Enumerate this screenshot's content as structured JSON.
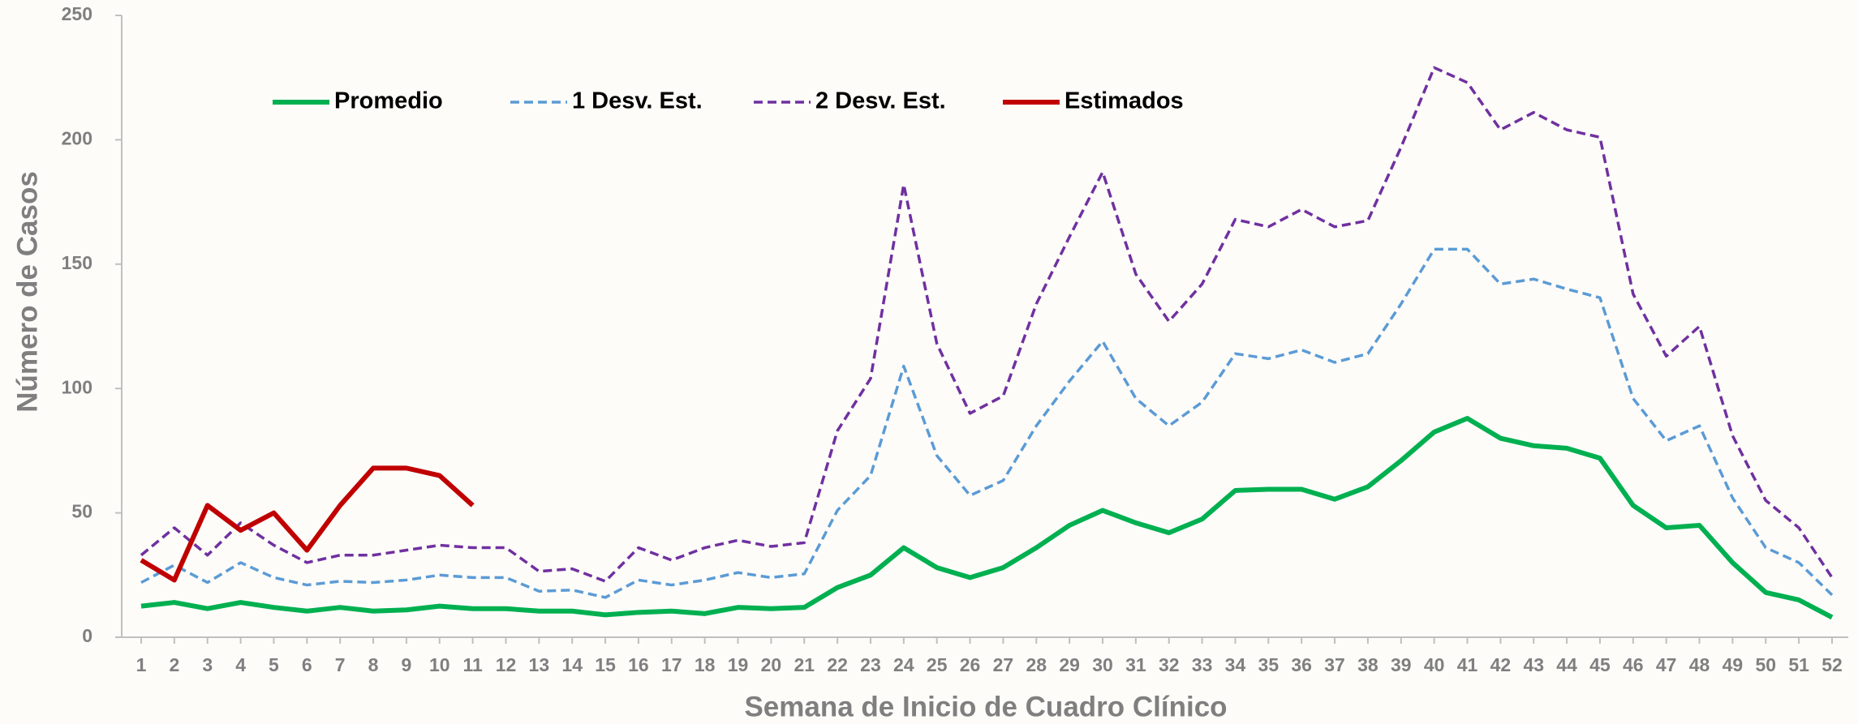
{
  "chart_data": {
    "type": "line",
    "x_label": "Semana de Inicio de Cuadro Clínico",
    "y_label": "Número de Casos",
    "x": [
      1,
      2,
      3,
      4,
      5,
      6,
      7,
      8,
      9,
      10,
      11,
      12,
      13,
      14,
      15,
      16,
      17,
      18,
      19,
      20,
      21,
      22,
      23,
      24,
      25,
      26,
      27,
      28,
      29,
      30,
      31,
      32,
      33,
      34,
      35,
      36,
      37,
      38,
      39,
      40,
      41,
      42,
      43,
      44,
      45,
      46,
      47,
      48,
      49,
      50,
      51,
      52
    ],
    "xlim": [
      1,
      52
    ],
    "ylim": [
      0,
      250
    ],
    "yticks": [
      0,
      50,
      100,
      150,
      200,
      250
    ],
    "legend": "top",
    "series": [
      {
        "name": "Promedio",
        "color": "#00b050",
        "dash": "solid",
        "values": [
          12.5,
          14,
          11.5,
          14,
          12,
          10.5,
          12,
          10.5,
          11,
          12.5,
          11.5,
          11.5,
          10.5,
          10.5,
          9,
          10,
          10.5,
          9.5,
          12,
          11.5,
          12,
          20,
          25,
          36,
          28,
          24,
          28,
          36,
          45,
          51,
          46,
          42,
          47.5,
          59,
          59.5,
          59.5,
          55.5,
          60.5,
          71,
          82.5,
          88,
          80,
          77,
          76,
          72,
          53,
          44,
          45,
          30,
          18,
          15,
          8
        ]
      },
      {
        "name": "1 Desv. Est.",
        "color": "#5b9bd5",
        "dash": "dashed",
        "values": [
          22,
          29,
          22,
          30,
          24,
          21,
          22.5,
          22,
          23,
          25,
          24,
          24,
          18.5,
          19,
          16,
          23,
          21,
          23,
          26,
          24,
          25.5,
          51,
          65,
          109,
          73,
          57,
          63,
          85,
          103,
          119,
          96,
          85,
          94.5,
          114,
          112,
          115.5,
          110.5,
          114,
          134,
          156,
          156,
          142,
          144,
          140,
          136.5,
          96,
          79,
          85,
          56,
          36,
          30,
          17
        ]
      },
      {
        "name": "2 Desv. Est.",
        "color": "#7030a0",
        "dash": "dashed",
        "values": [
          33,
          44,
          33,
          46,
          37,
          30,
          33,
          33,
          35,
          37,
          36,
          36,
          26.5,
          27.5,
          22.5,
          36,
          31,
          36,
          39,
          36.5,
          38,
          83,
          104,
          182,
          118,
          90,
          97,
          134,
          161,
          187,
          146,
          127,
          142,
          168,
          165,
          172,
          165,
          167.5,
          197,
          229,
          223,
          204,
          211,
          204,
          201,
          138,
          113,
          125,
          81,
          55,
          44,
          24
        ]
      },
      {
        "name": "Estimados",
        "color": "#c00000",
        "dash": "solid",
        "values": [
          31,
          23,
          53,
          43,
          50,
          35,
          53,
          68,
          68,
          65,
          53,
          null,
          null,
          null,
          null,
          null,
          null,
          null,
          null,
          null,
          null,
          null,
          null,
          null,
          null,
          null,
          null,
          null,
          null,
          null,
          null,
          null,
          null,
          null,
          null,
          null,
          null,
          null,
          null,
          null,
          null,
          null,
          null,
          null,
          null,
          null,
          null,
          null,
          null,
          null,
          null,
          null
        ]
      }
    ]
  }
}
